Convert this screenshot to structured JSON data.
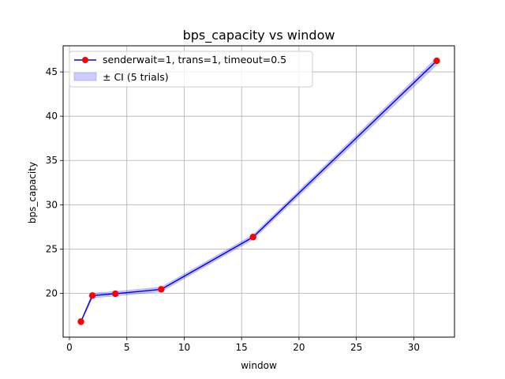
{
  "chart_data": {
    "type": "line",
    "title": "bps_capacity vs window",
    "xlabel": "window",
    "ylabel": "bps_capacity",
    "xlim": [
      -0.55,
      33.55
    ],
    "ylim": [
      15.05,
      47.95
    ],
    "x_ticks": [
      0,
      5,
      10,
      15,
      20,
      25,
      30
    ],
    "y_ticks": [
      20,
      25,
      30,
      35,
      40,
      45
    ],
    "grid": true,
    "legend_placement": "top-left",
    "series": [
      {
        "name": "senderwait=1, trans=1, timeout=0.5",
        "color": "#0000ff",
        "marker_color": "#ff0000",
        "x": [
          1,
          2,
          4,
          8,
          16,
          32
        ],
        "y": [
          16.8,
          19.75,
          19.95,
          20.45,
          26.35,
          46.25
        ]
      }
    ],
    "band": {
      "name": "± CI (5 trials)",
      "color": "#0000ff",
      "lower": [
        16.75,
        19.5,
        19.7,
        20.2,
        26.1,
        45.8
      ],
      "upper": [
        16.85,
        20.0,
        20.2,
        20.7,
        26.6,
        46.6
      ]
    }
  }
}
